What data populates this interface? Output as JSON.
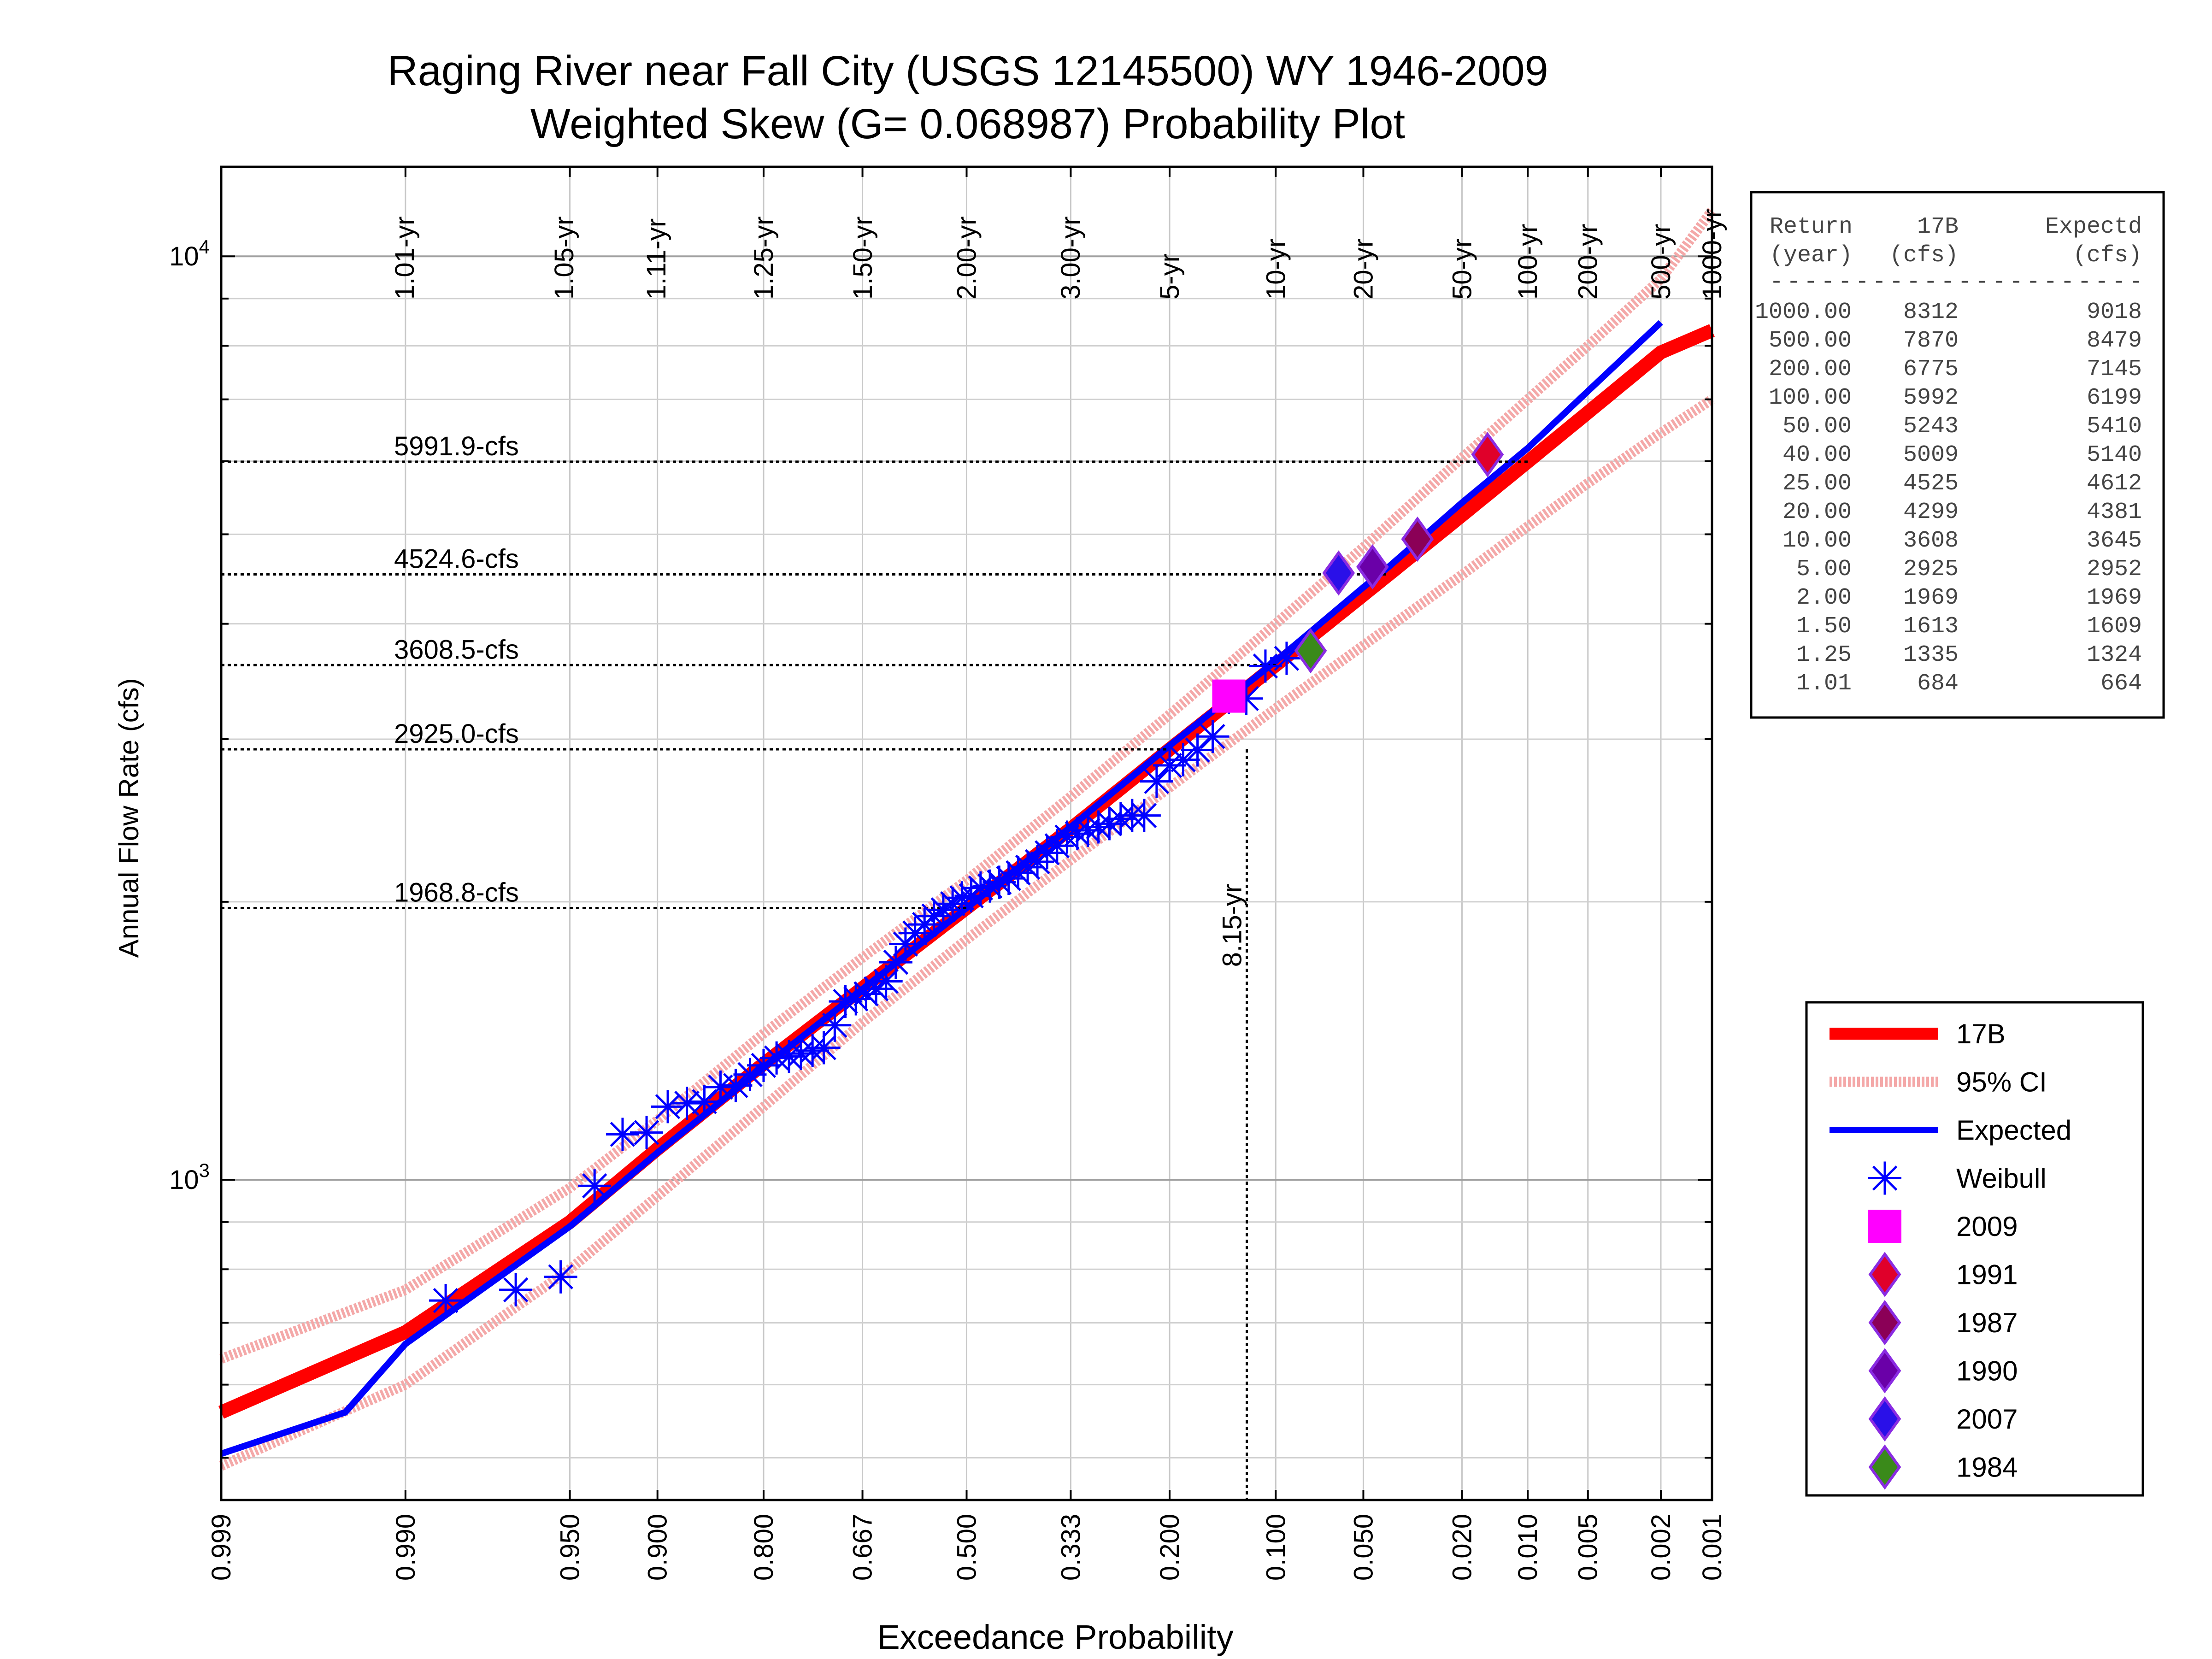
{
  "chart_data": {
    "type": "scatter",
    "title_line1": "Raging River near Fall City (USGS 12145500) WY 1946-2009",
    "title_line2": "Weighted Skew (G= 0.068987) Probability Plot",
    "xlabel": "Exceedance Probability",
    "ylabel": "Annual Flow Rate (cfs)",
    "x_scale": "normal-probability (reversed)",
    "y_scale": "log",
    "xlim": [
      0.999,
      0.001
    ],
    "ylim": [
      450,
      12500
    ],
    "grid": true,
    "x_ticks": [
      "0.999",
      "0.990",
      "0.950",
      "0.900",
      "0.800",
      "0.667",
      "0.500",
      "0.333",
      "0.200",
      "0.100",
      "0.050",
      "0.020",
      "0.010",
      "0.005",
      "0.002",
      "0.001"
    ],
    "y_ticks": [
      {
        "value": 1000,
        "base": "10",
        "exp": "3"
      },
      {
        "value": 10000,
        "base": "10",
        "exp": "4"
      }
    ],
    "return_period_labels": [
      {
        "label": "1.01-yr",
        "p": 0.990099
      },
      {
        "label": "1.05-yr",
        "p": 0.952381
      },
      {
        "label": "1.11-yr",
        "p": 0.900901
      },
      {
        "label": "1.25-yr",
        "p": 0.8
      },
      {
        "label": "1.50-yr",
        "p": 0.666667
      },
      {
        "label": "2.00-yr",
        "p": 0.5
      },
      {
        "label": "3.00-yr",
        "p": 0.333333
      },
      {
        "label": "5-yr",
        "p": 0.2
      },
      {
        "label": "10-yr",
        "p": 0.1
      },
      {
        "label": "20-yr",
        "p": 0.05
      },
      {
        "label": "50-yr",
        "p": 0.02
      },
      {
        "label": "100-yr",
        "p": 0.01
      },
      {
        "label": "200-yr",
        "p": 0.005
      },
      {
        "label": "500-yr",
        "p": 0.002
      },
      {
        "label": "1000-yr",
        "p": 0.001
      }
    ],
    "reference_lines": [
      {
        "label": "5991.9-cfs",
        "value": 5991.9,
        "p": 0.01
      },
      {
        "label": "4524.6-cfs",
        "value": 4524.6,
        "p": 0.04
      },
      {
        "label": "3608.5-cfs",
        "value": 3608.5,
        "p": 0.1
      },
      {
        "label": "2925.0-cfs",
        "value": 2925.0,
        "p": 0.2
      },
      {
        "label": "1968.8-cfs",
        "value": 1968.8,
        "p": 0.5
      }
    ],
    "vertical_marker": {
      "label": "8.15-yr",
      "p": 0.1227,
      "value": 2925
    },
    "series": [
      {
        "name": "17B",
        "kind": "line",
        "color": "#ff0000",
        "p": [
          0.999,
          0.99,
          0.95,
          0.9,
          0.8,
          0.667,
          0.5,
          0.333,
          0.2,
          0.1,
          0.05,
          0.04,
          0.02,
          0.01,
          0.005,
          0.002,
          0.001
        ],
        "values": [
          560,
          684,
          900,
          1080,
          1335,
          1613,
          1969,
          2400,
          2925,
          3608,
          4299,
          4525,
          5243,
          5992,
          6775,
          7870,
          8312
        ]
      },
      {
        "name": "95% CI",
        "kind": "band",
        "color": "#f4a8a8",
        "p": [
          0.999,
          0.99,
          0.95,
          0.9,
          0.8,
          0.667,
          0.5,
          0.333,
          0.2,
          0.1,
          0.05,
          0.02,
          0.01,
          0.005,
          0.002,
          0.001
        ],
        "upper": [
          640,
          760,
          980,
          1160,
          1440,
          1740,
          2110,
          2600,
          3190,
          4000,
          4840,
          6050,
          7000,
          8000,
          9450,
          11200
        ],
        "lower": [
          490,
          600,
          800,
          960,
          1200,
          1480,
          1820,
          2220,
          2660,
          3240,
          3790,
          4520,
          5100,
          5680,
          6440,
          7000
        ]
      },
      {
        "name": "Expected",
        "kind": "line",
        "color": "#0000ff",
        "p": [
          0.999,
          0.995,
          0.99,
          0.95,
          0.9,
          0.8,
          0.667,
          0.5,
          0.333,
          0.2,
          0.1,
          0.05,
          0.04,
          0.02,
          0.01,
          0.005,
          0.002
        ],
        "values": [
          505,
          560,
          664,
          890,
          1070,
          1324,
          1609,
          1969,
          2410,
          2952,
          3645,
          4381,
          4612,
          5410,
          6199,
          7145,
          8479
        ]
      },
      {
        "name": "Weibull",
        "kind": "points",
        "marker": "asterisk",
        "color": "#0000ff",
        "p": [
          0.9846,
          0.9692,
          0.9538,
          0.9385,
          0.9231,
          0.9077,
          0.8923,
          0.8769,
          0.8615,
          0.8462,
          0.8308,
          0.8154,
          0.8,
          0.7846,
          0.7692,
          0.7538,
          0.7385,
          0.7231,
          0.7077,
          0.6923,
          0.6769,
          0.6615,
          0.6462,
          0.6308,
          0.6154,
          0.6,
          0.5846,
          0.5692,
          0.5538,
          0.5385,
          0.5231,
          0.5077,
          0.4923,
          0.4769,
          0.4615,
          0.4462,
          0.4308,
          0.4154,
          0.4,
          0.3846,
          0.3692,
          0.3538,
          0.3385,
          0.3231,
          0.3077,
          0.2923,
          0.2769,
          0.2615,
          0.2462,
          0.2308,
          0.2154,
          0.2,
          0.1846,
          0.1692,
          0.1538,
          0.1385,
          0.1231,
          0.1077,
          0.0923
        ],
        "values": [
          740,
          760,
          785,
          985,
          1120,
          1125,
          1200,
          1210,
          1215,
          1260,
          1265,
          1300,
          1330,
          1355,
          1360,
          1370,
          1380,
          1390,
          1470,
          1560,
          1570,
          1590,
          1610,
          1640,
          1720,
          1800,
          1850,
          1890,
          1930,
          1960,
          1990,
          2020,
          2030,
          2070,
          2080,
          2100,
          2120,
          2150,
          2180,
          2210,
          2260,
          2300,
          2350,
          2370,
          2390,
          2410,
          2430,
          2460,
          2480,
          2480,
          2700,
          2810,
          2850,
          2920,
          3020,
          3330,
          3320,
          3600,
          3670
        ]
      },
      {
        "name": "2009",
        "kind": "points",
        "marker": "square",
        "color": "#ff00ff",
        "p": [
          0.1385
        ],
        "values": [
          3340
        ]
      },
      {
        "name": "1991",
        "kind": "points",
        "marker": "diamond",
        "color": "#e0002a",
        "p": [
          0.0154
        ],
        "values": [
          6100
        ]
      },
      {
        "name": "1987",
        "kind": "points",
        "marker": "diamond",
        "color": "#8b0057",
        "p": [
          0.0308
        ],
        "values": [
          4940
        ]
      },
      {
        "name": "1990",
        "kind": "points",
        "marker": "diamond",
        "color": "#6a00a8",
        "p": [
          0.0462
        ],
        "values": [
          4610
        ]
      },
      {
        "name": "2007",
        "kind": "points",
        "marker": "diamond",
        "color": "#2a10e8",
        "p": [
          0.0615
        ],
        "values": [
          4540
        ]
      },
      {
        "name": "1984",
        "kind": "points",
        "marker": "diamond",
        "color": "#3a8a1a",
        "p": [
          0.0769
        ],
        "values": [
          3740
        ]
      }
    ],
    "legend": [
      {
        "label": "17B",
        "symbol": "thick-line",
        "color": "#ff0000"
      },
      {
        "label": "95% CI",
        "symbol": "band-line",
        "color": "#f4a8a8"
      },
      {
        "label": "Expected",
        "symbol": "line",
        "color": "#0000ff"
      },
      {
        "label": "Weibull",
        "symbol": "asterisk",
        "color": "#0000ff"
      },
      {
        "label": "2009",
        "symbol": "square",
        "color": "#ff00ff"
      },
      {
        "label": "1991",
        "symbol": "diamond",
        "color": "#e0002a"
      },
      {
        "label": "1987",
        "symbol": "diamond",
        "color": "#8b0057"
      },
      {
        "label": "1990",
        "symbol": "diamond",
        "color": "#6a00a8"
      },
      {
        "label": "2007",
        "symbol": "diamond",
        "color": "#2a10e8"
      },
      {
        "label": "1984",
        "symbol": "diamond",
        "color": "#3a8a1a"
      }
    ],
    "legend_placement": "right",
    "table": {
      "header": [
        "Return  17B  Expectd",
        "(year)  (cfs)  (cfs)"
      ],
      "header_cells": [
        [
          "Return",
          "17B",
          "Expectd"
        ],
        [
          "(year)",
          "(cfs)",
          "(cfs)"
        ]
      ],
      "rule": "----------------------",
      "rows": [
        [
          "1000.00",
          "8312",
          "9018"
        ],
        [
          "500.00",
          "7870",
          "8479"
        ],
        [
          "200.00",
          "6775",
          "7145"
        ],
        [
          "100.00",
          "5992",
          "6199"
        ],
        [
          "50.00",
          "5243",
          "5410"
        ],
        [
          "40.00",
          "5009",
          "5140"
        ],
        [
          "25.00",
          "4525",
          "4612"
        ],
        [
          "20.00",
          "4299",
          "4381"
        ],
        [
          "10.00",
          "3608",
          "3645"
        ],
        [
          "5.00",
          "2925",
          "2952"
        ],
        [
          "2.00",
          "1969",
          "1969"
        ],
        [
          "1.50",
          "1613",
          "1609"
        ],
        [
          "1.25",
          "1335",
          "1324"
        ],
        [
          "1.01",
          "684",
          "664"
        ]
      ]
    }
  }
}
